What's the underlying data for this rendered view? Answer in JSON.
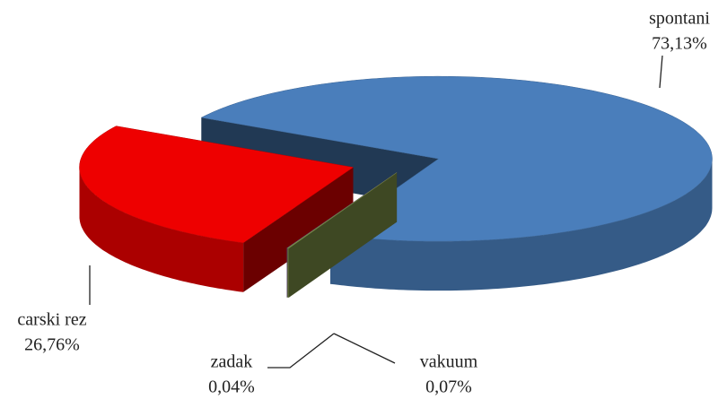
{
  "chart_data": {
    "type": "pie3d",
    "categories": [
      "spontani",
      "vakuum",
      "zadak",
      "carski rez"
    ],
    "values": [
      73.13,
      0.07,
      0.04,
      26.76
    ],
    "value_labels": [
      "73,13%",
      "0,07%",
      "0,04%",
      "26,76%"
    ],
    "colors": [
      "#4a7ebb",
      "#8aa04e",
      "#7a5f9a",
      "#ee0000"
    ]
  }
}
